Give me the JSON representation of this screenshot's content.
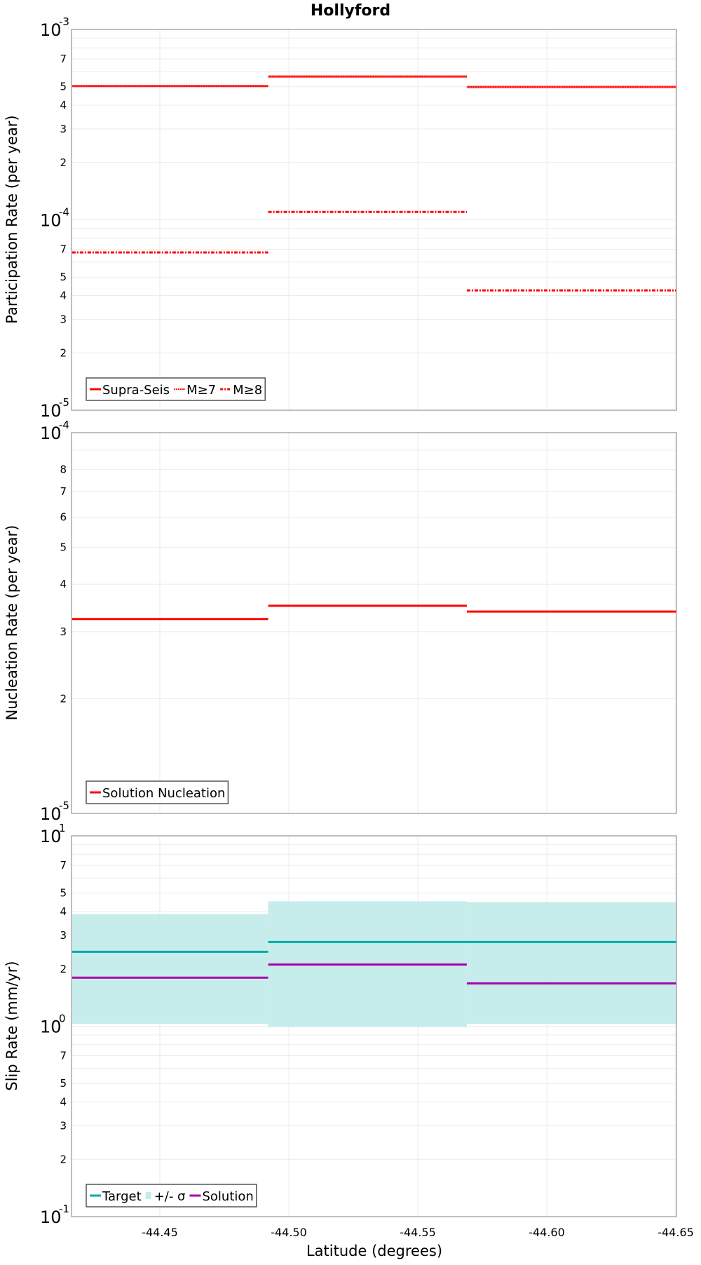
{
  "title": "Hollyford",
  "xlabel": "Latitude (degrees)",
  "x_ticks": [
    "-44.45",
    "-44.50",
    "-44.55",
    "-44.60",
    "-44.65"
  ],
  "colors": {
    "red": "#ff0000",
    "target": "#00aaaa",
    "sigma_fill": "#c3ecea",
    "solution": "#aa00aa",
    "grid": "#ebebeb",
    "frame": "#aaaaaa",
    "legend_border": "#555555"
  },
  "chart_data": [
    {
      "type": "line",
      "title": "Hollyford",
      "xlabel": "Latitude (degrees)",
      "ylabel": "Participation Rate (per year)",
      "yscale": "log",
      "ylim": [
        1e-05,
        0.001
      ],
      "xlim": [
        -44.416,
        -44.651
      ],
      "x_ticks": [
        -44.45,
        -44.5,
        -44.55,
        -44.6,
        -44.65
      ],
      "y_major_ticks": [
        "10^-5",
        "10^-4",
        "10^-3"
      ],
      "y_minor_tick_labels": [
        "2",
        "3",
        "4",
        "5",
        "7"
      ],
      "segments_x": [
        [
          -44.416,
          -44.492
        ],
        [
          -44.492,
          -44.569
        ],
        [
          -44.569,
          -44.651
        ]
      ],
      "series": [
        {
          "name": "Supra-Seis",
          "style": "solid",
          "values": [
            0.000504,
            0.000566,
            0.000499
          ]
        },
        {
          "name": "M≥7",
          "style": "dotted",
          "values": [
            0.000504,
            0.000566,
            0.000499
          ]
        },
        {
          "name": "M≥8",
          "style": "dash-dot",
          "values": [
            6.74e-05,
            0.00011,
            4.26e-05
          ]
        }
      ],
      "legend": [
        "Supra-Seis",
        "M≥7",
        "M≥8"
      ],
      "legend_position": "lower-left",
      "grid": true
    },
    {
      "type": "line",
      "ylabel": "Nucleation Rate (per year)",
      "yscale": "log",
      "ylim": [
        1e-05,
        0.0001
      ],
      "y_major_ticks": [
        "10^-5",
        "10^-4"
      ],
      "y_minor_tick_labels": [
        "2",
        "3",
        "4",
        "5",
        "6",
        "7",
        "8"
      ],
      "segments_x": [
        [
          -44.416,
          -44.492
        ],
        [
          -44.492,
          -44.569
        ],
        [
          -44.569,
          -44.651
        ]
      ],
      "series": [
        {
          "name": "Solution Nucleation",
          "style": "solid",
          "values": [
            3.24e-05,
            3.51e-05,
            3.39e-05
          ]
        }
      ],
      "legend": [
        "Solution Nucleation"
      ],
      "legend_position": "lower-left",
      "grid": true
    },
    {
      "type": "line",
      "xlabel": "Latitude (degrees)",
      "ylabel": "Slip Rate (mm/yr)",
      "yscale": "log",
      "ylim": [
        0.1,
        10
      ],
      "y_major_ticks": [
        "10^-1",
        "10^0",
        "10^1"
      ],
      "y_minor_tick_labels": [
        "2",
        "3",
        "4",
        "5",
        "7"
      ],
      "segments_x": [
        [
          -44.416,
          -44.492
        ],
        [
          -44.492,
          -44.569
        ],
        [
          -44.569,
          -44.651
        ]
      ],
      "series": [
        {
          "name": "Target",
          "style": "solid",
          "values": [
            2.46,
            2.77,
            2.77
          ]
        },
        {
          "name": "+/- σ",
          "style": "band",
          "lower": [
            1.03,
            0.99,
            1.03
          ],
          "upper": [
            3.88,
            4.53,
            4.49
          ]
        },
        {
          "name": "Solution",
          "style": "solid",
          "values": [
            1.8,
            2.11,
            1.68
          ]
        }
      ],
      "legend": [
        "Target",
        "+/- σ",
        "Solution"
      ],
      "legend_position": "lower-left",
      "grid": true
    }
  ]
}
